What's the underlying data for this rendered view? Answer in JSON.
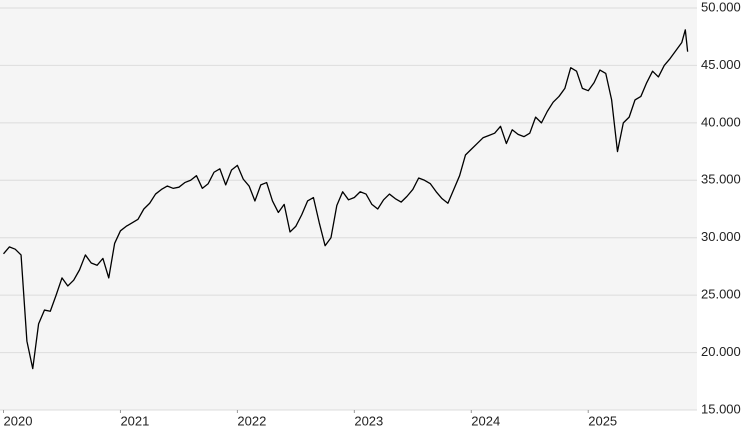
{
  "chart_data": {
    "type": "line",
    "x": [
      2020,
      2020.05,
      2020.1,
      2020.15,
      2020.2,
      2020.25,
      2020.3,
      2020.35,
      2020.4,
      2020.45,
      2020.5,
      2020.55,
      2020.6,
      2020.65,
      2020.7,
      2020.75,
      2020.8,
      2020.85,
      2020.9,
      2020.95,
      2021,
      2021.05,
      2021.1,
      2021.15,
      2021.2,
      2021.25,
      2021.3,
      2021.35,
      2021.4,
      2021.45,
      2021.5,
      2021.55,
      2021.6,
      2021.65,
      2021.7,
      2021.75,
      2021.8,
      2021.85,
      2021.9,
      2021.95,
      2022,
      2022.05,
      2022.1,
      2022.15,
      2022.2,
      2022.25,
      2022.3,
      2022.35,
      2022.4,
      2022.45,
      2022.5,
      2022.55,
      2022.6,
      2022.65,
      2022.7,
      2022.75,
      2022.8,
      2022.85,
      2022.9,
      2022.95,
      2023,
      2023.05,
      2023.1,
      2023.15,
      2023.2,
      2023.25,
      2023.3,
      2023.35,
      2023.4,
      2023.45,
      2023.5,
      2023.55,
      2023.6,
      2023.65,
      2023.7,
      2023.75,
      2023.8,
      2023.85,
      2023.9,
      2023.95,
      2024,
      2024.05,
      2024.1,
      2024.15,
      2024.2,
      2024.25,
      2024.3,
      2024.35,
      2024.4,
      2024.45,
      2024.5,
      2024.55,
      2024.6,
      2024.65,
      2024.7,
      2024.75,
      2024.8,
      2024.85,
      2024.9,
      2024.95,
      2025,
      2025.05,
      2025.1,
      2025.15,
      2025.2,
      2025.25,
      2025.3,
      2025.35,
      2025.4,
      2025.45,
      2025.5,
      2025.55,
      2025.6,
      2025.65,
      2025.7,
      2025.75,
      2025.8,
      2025.83,
      2025.85
    ],
    "series": [
      {
        "color": "#000000",
        "values": [
          28600,
          29200,
          29000,
          28500,
          21000,
          18600,
          22500,
          23700,
          23600,
          25000,
          26500,
          25800,
          26300,
          27200,
          28500,
          27800,
          27600,
          28200,
          26500,
          29500,
          30600,
          31000,
          31300,
          31600,
          32500,
          33000,
          33800,
          34200,
          34500,
          34300,
          34400,
          34800,
          35000,
          35400,
          34300,
          34700,
          35700,
          36000,
          34600,
          35900,
          36300,
          35100,
          34500,
          33200,
          34600,
          34800,
          33200,
          32200,
          32900,
          30500,
          31000,
          32000,
          33200,
          33500,
          31300,
          29300,
          30000,
          32800,
          34000,
          33300,
          33500,
          34000,
          33800,
          32900,
          32500,
          33300,
          33800,
          33400,
          33100,
          33600,
          34200,
          35200,
          35000,
          34700,
          34000,
          33400,
          33000,
          34200,
          35400,
          37200,
          37700,
          38200,
          38700,
          38900,
          39100,
          39700,
          38200,
          39400,
          39000,
          38800,
          39100,
          40500,
          40000,
          41000,
          41800,
          42300,
          43000,
          44800,
          44500,
          43000,
          42800,
          43500,
          44600,
          44300,
          42000,
          37500,
          40000,
          40500,
          42000,
          42300,
          43500,
          44500,
          44000,
          45000,
          45600,
          46300,
          47000,
          48100,
          46200
        ]
      }
    ],
    "xlim": [
      2019.97,
      2025.93
    ],
    "xticks": [
      2020,
      2021,
      2022,
      2023,
      2024,
      2025
    ],
    "ylim": [
      15000,
      50000
    ],
    "yticks": [
      {
        "value": 15000,
        "label": "15.000"
      },
      {
        "value": 20000,
        "label": "20.000"
      },
      {
        "value": 25000,
        "label": "25.000"
      },
      {
        "value": 30000,
        "label": "30.000"
      },
      {
        "value": 35000,
        "label": "35.000"
      },
      {
        "value": 40000,
        "label": "40.000"
      },
      {
        "value": 45000,
        "label": "45.000"
      },
      {
        "value": 50000,
        "label": "50.000"
      }
    ],
    "grid": true
  }
}
